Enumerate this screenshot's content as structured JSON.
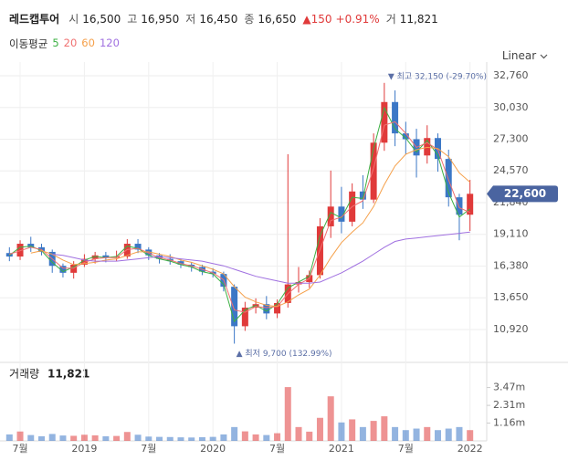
{
  "header": {
    "name": "레드캡투어",
    "items": [
      {
        "label": "시",
        "value": "16,500"
      },
      {
        "label": "고",
        "value": "16,950"
      },
      {
        "label": "저",
        "value": "16,450"
      },
      {
        "label": "종",
        "value": "16,650"
      }
    ],
    "change": "▲150",
    "change_pct": "+0.91%",
    "volume_label": "거",
    "volume": "11,821",
    "scale": "Linear"
  },
  "chart_data": [
    {
      "type": "candlestick",
      "legend_title": "이동평균",
      "up_color": "#e03a3a",
      "down_color": "#3b77c6",
      "grid": true,
      "categories": [
        null,
        "7월",
        null,
        null,
        null,
        null,
        null,
        "2019",
        null,
        null,
        null,
        null,
        null,
        "7월",
        null,
        null,
        null,
        null,
        null,
        "2020",
        null,
        null,
        null,
        null,
        null,
        "7월",
        null,
        null,
        null,
        null,
        null,
        "2021",
        null,
        null,
        null,
        null,
        null,
        "7월",
        null,
        null,
        null,
        null,
        null,
        "2022"
      ],
      "open": [
        17500,
        17200,
        18300,
        18000,
        17600,
        16400,
        15800,
        16500,
        17000,
        17300,
        17100,
        17200,
        18300,
        17800,
        17300,
        17000,
        16800,
        16500,
        16300,
        15900,
        15700,
        14600,
        11200,
        12800,
        13100,
        12300,
        13200,
        14800,
        15000,
        15600,
        19800,
        21500,
        20200,
        22800,
        22100,
        27000,
        30500,
        27800,
        27300,
        25900,
        27400,
        25600,
        22300,
        20800
      ],
      "high": [
        18000,
        18600,
        18900,
        18300,
        17800,
        16600,
        16800,
        17400,
        17600,
        17600,
        17700,
        18700,
        18700,
        18000,
        17500,
        17400,
        17000,
        16700,
        16500,
        16200,
        15900,
        14800,
        13300,
        13600,
        13800,
        13500,
        26000,
        16300,
        16000,
        20500,
        24600,
        23200,
        23500,
        24200,
        27800,
        32150,
        31500,
        28800,
        28200,
        28500,
        27800,
        26400,
        22600,
        23800
      ],
      "low": [
        16800,
        16900,
        17600,
        17300,
        15800,
        15400,
        15300,
        16300,
        16600,
        16700,
        16800,
        17000,
        17500,
        16900,
        16600,
        16500,
        16200,
        15900,
        15600,
        15400,
        14200,
        9700,
        10800,
        12300,
        11800,
        11900,
        12800,
        14100,
        14500,
        15300,
        18800,
        19200,
        19800,
        21300,
        21800,
        26300,
        26700,
        26000,
        24000,
        25200,
        24500,
        21500,
        18600,
        19400
      ],
      "close": [
        17200,
        18300,
        18000,
        17600,
        16400,
        15800,
        16500,
        17000,
        17300,
        17100,
        17200,
        18300,
        17800,
        17300,
        17000,
        16800,
        16500,
        16300,
        15900,
        15700,
        14600,
        11200,
        12800,
        13100,
        12300,
        13200,
        14800,
        15000,
        15600,
        19800,
        21500,
        20200,
        22800,
        22100,
        27000,
        30500,
        27800,
        27300,
        25900,
        27400,
        25600,
        22300,
        20800,
        22600
      ],
      "series": [
        {
          "name": "5",
          "color": "#3cb043",
          "values": [
            17300,
            18000,
            18100,
            17700,
            16700,
            15900,
            16300,
            16900,
            17200,
            17100,
            17200,
            18100,
            17900,
            17300,
            17000,
            16800,
            16500,
            16300,
            15900,
            15700,
            14800,
            11600,
            12600,
            13000,
            12500,
            13100,
            14500,
            15000,
            15500,
            19000,
            21000,
            20500,
            22300,
            22200,
            26500,
            30000,
            28200,
            27400,
            26200,
            27200,
            25900,
            22700,
            20600,
            21300
          ]
        },
        {
          "name": "20",
          "color": "#f07070",
          "values": [
            17400,
            17700,
            18000,
            17800,
            17000,
            16200,
            16200,
            16700,
            17000,
            17100,
            17100,
            17800,
            17900,
            17500,
            17100,
            16900,
            16600,
            16400,
            16100,
            15800,
            15200,
            12600,
            12400,
            12900,
            12800,
            12900,
            14000,
            14800,
            15300,
            17800,
            20300,
            20600,
            21500,
            22000,
            24800,
            28500,
            28800,
            27800,
            26600,
            27000,
            26400,
            23800,
            21400,
            21000
          ]
        },
        {
          "name": "60",
          "color": "#f5a04a",
          "values": [
            null,
            null,
            17500,
            17700,
            17400,
            16900,
            16500,
            16600,
            16700,
            16900,
            17000,
            17300,
            17600,
            17600,
            17400,
            17200,
            16900,
            16700,
            16400,
            16100,
            15700,
            14600,
            13700,
            13300,
            13000,
            12900,
            13300,
            13900,
            14400,
            15600,
            17100,
            18400,
            19300,
            20100,
            21500,
            23400,
            25000,
            26000,
            26400,
            26600,
            26500,
            25800,
            24400,
            23600
          ]
        },
        {
          "name": "120",
          "color": "#a070e0",
          "values": [
            null,
            null,
            null,
            null,
            17400,
            17300,
            17100,
            16900,
            16800,
            16800,
            16800,
            16900,
            17000,
            17100,
            17200,
            17100,
            17000,
            16900,
            16800,
            16600,
            16400,
            16100,
            15800,
            15500,
            15300,
            15100,
            14900,
            14900,
            14900,
            15000,
            15400,
            15800,
            16300,
            16800,
            17400,
            18000,
            18500,
            18700,
            18800,
            18900,
            19000,
            19100,
            19200,
            19300
          ]
        }
      ],
      "ylim": [
        8245,
        33783
      ],
      "yticks": [
        {
          "value": 10920,
          "label": "10,920"
        },
        {
          "value": 13650,
          "label": "13,650"
        },
        {
          "value": 16380,
          "label": "16,380"
        },
        {
          "value": 19110,
          "label": "19,110"
        },
        {
          "value": 21840,
          "label": "21,840"
        },
        {
          "value": 24570,
          "label": "24,570"
        },
        {
          "value": 27300,
          "label": "27,300"
        },
        {
          "value": 30030,
          "label": "30,030"
        },
        {
          "value": 32760,
          "label": "32,760"
        }
      ],
      "annotations": [
        "▼ 최고 32,150 (-29.70%)",
        "▲ 최저 9,700 (132.99%)"
      ],
      "last_price": {
        "value": 22600,
        "label": "22,600"
      }
    },
    {
      "type": "bar",
      "title": "거래량",
      "title_value": "11,821",
      "values": [
        420000,
        610000,
        380000,
        300000,
        450000,
        350000,
        330000,
        400000,
        360000,
        300000,
        320000,
        580000,
        400000,
        280000,
        260000,
        250000,
        230000,
        220000,
        240000,
        260000,
        420000,
        900000,
        620000,
        420000,
        380000,
        500000,
        3500000,
        900000,
        600000,
        1500000,
        2900000,
        1200000,
        1400000,
        900000,
        1300000,
        1600000,
        900000,
        700000,
        800000,
        900000,
        700000,
        800000,
        900000,
        700000
      ],
      "ylim": [
        0,
        4930000
      ],
      "yticks": [
        {
          "value": 1160000,
          "label": "1.16m"
        },
        {
          "value": 2310000,
          "label": "2.31m"
        },
        {
          "value": 3470000,
          "label": "3.47m"
        }
      ]
    }
  ]
}
